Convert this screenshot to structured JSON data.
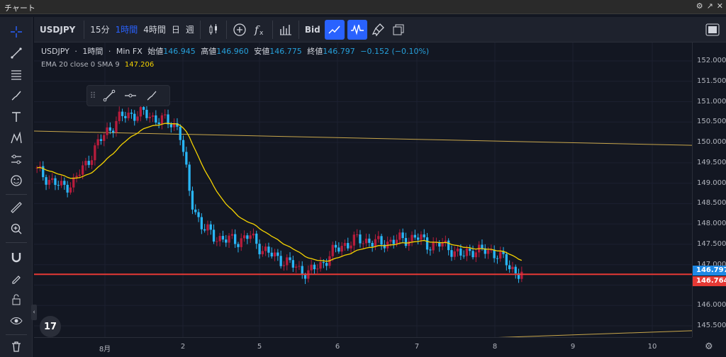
{
  "window": {
    "title": "チャート",
    "icons": [
      "⚙",
      "↗",
      "✕"
    ]
  },
  "topbar": {
    "symbol": "USDJPY",
    "intervals": [
      "15分",
      "1時間",
      "4時間",
      "日",
      "週"
    ],
    "active_interval": "1時間",
    "bid_label": "Bid"
  },
  "legend": {
    "symbol": "USDJPY",
    "interval": "1時間",
    "source": "Min FX",
    "open_label": "始値",
    "open": "146.945",
    "high_label": "高値",
    "high": "146.960",
    "low_label": "安値",
    "low": "146.775",
    "close_label": "終値",
    "close": "146.797",
    "change": "−0.152 (−0.10%)",
    "ema_label": "EMA 20 close 0 SMA 9",
    "ema_value": "147.206"
  },
  "yaxis": {
    "ticks": [
      "152.000",
      "151.500",
      "151.000",
      "150.500",
      "150.000",
      "149.500",
      "149.000",
      "148.500",
      "148.000",
      "147.500",
      "147.000",
      "146.500",
      "146.000",
      "145.500"
    ],
    "current_price": "146.797",
    "line_price": "146.764"
  },
  "xaxis": {
    "ticks": [
      "8月",
      "2",
      "5",
      "6",
      "7",
      "8",
      "9",
      "10"
    ]
  },
  "colors": {
    "up": "#ef5350",
    "down": "#26a69a",
    "bull": "#b71c3c",
    "bear": "#29b6f6",
    "ema": "#f5d300",
    "hline": "#e53935",
    "trend": "#c8a64b"
  },
  "logo": "17",
  "chart_data": {
    "type": "candlestick",
    "symbol": "USDJPY",
    "interval": "1時間",
    "ylim": [
      145.4,
      152.2
    ],
    "x_labels": [
      "8月",
      "2",
      "5",
      "6",
      "7",
      "8",
      "9",
      "10"
    ],
    "horizontal_line": 146.764,
    "indicator": {
      "name": "EMA 20 close 0 SMA 9",
      "last": 147.206
    },
    "approx_closes": [
      149.3,
      149.1,
      148.9,
      149.0,
      149.4,
      149.9,
      150.3,
      150.6,
      150.7,
      150.7,
      150.6,
      150.5,
      150.4,
      148.6,
      147.9,
      147.7,
      147.6,
      147.6,
      147.7,
      147.4,
      147.2,
      147.1,
      146.9,
      146.8,
      147.0,
      147.3,
      147.5,
      147.6,
      147.6,
      147.5,
      147.6,
      147.6,
      147.7,
      147.5,
      147.5,
      147.4,
      147.2,
      147.4,
      147.3,
      147.3,
      146.9,
      146.8
    ]
  }
}
